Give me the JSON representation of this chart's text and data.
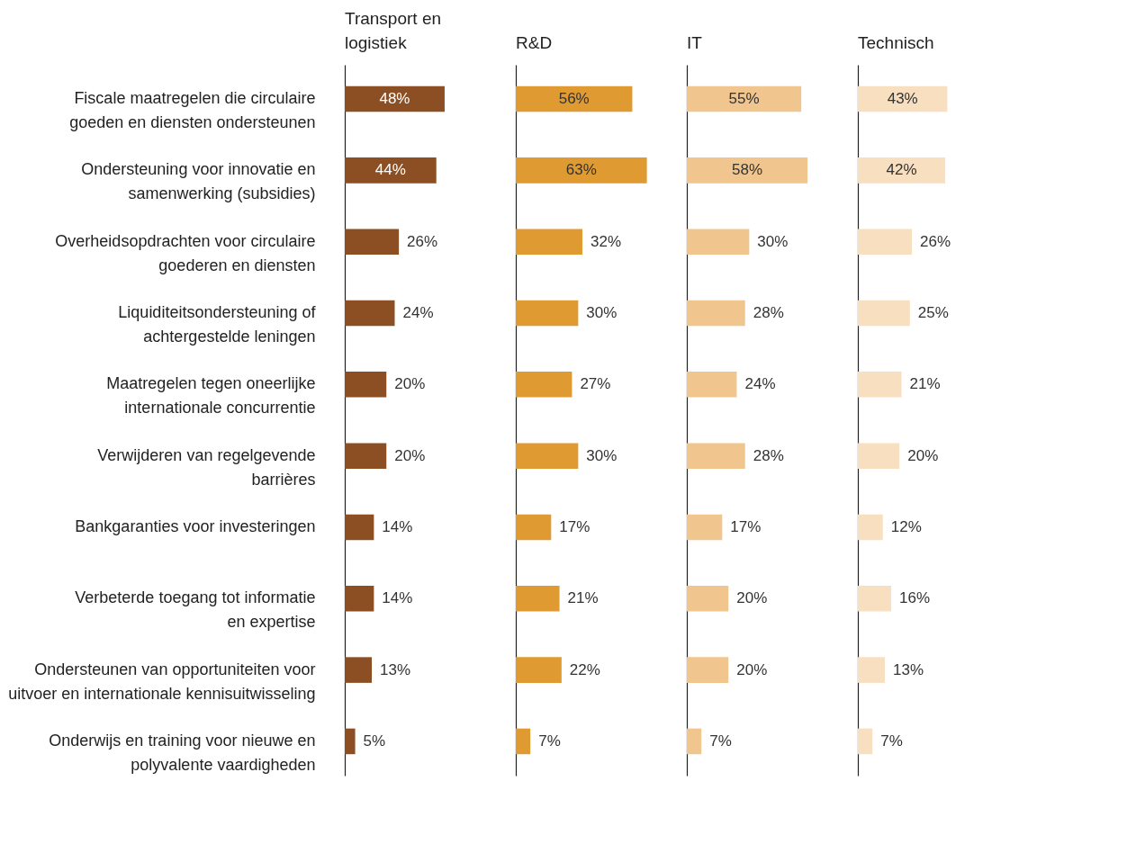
{
  "chart_data": [
    {
      "type": "bar",
      "orientation": "horizontal",
      "title": "Transport en\nlogistiek",
      "tick_labels": "y",
      "color": "#8b4f23",
      "categories": [
        "Fiscale maatregelen die circulaire\ngoeden en diensten ondersteunen",
        "Ondersteuning voor innovatie en\nsamenwerking (subsidies)",
        "Overheidsopdrachten voor circulaire\ngoederen en diensten",
        "Liquiditeitsondersteuning of\nachtergestelde leningen",
        "Maatregelen tegen oneerlijke\ninternationale concurrentie",
        "Verwijderen van regelgevende\nbarrières",
        "Bankgaranties voor investeringen",
        "Verbeterde toegang tot informatie\nen expertise",
        "Ondersteunen van opportuniteiten voor\nuitvoer en internationale kennisuitwisseling",
        "Onderwijs en training voor nieuwe en\npolyvalente vaardigheden"
      ],
      "values": [
        48,
        44,
        26,
        24,
        20,
        20,
        14,
        14,
        13,
        5
      ],
      "value_labels": [
        "48%",
        "44%",
        "26%",
        "24%",
        "20%",
        "20%",
        "14%",
        "14%",
        "13%",
        "5%"
      ]
    },
    {
      "type": "bar",
      "orientation": "horizontal",
      "title": "R&D",
      "tick_labels": false,
      "color": "#e09a32",
      "categories": [
        "Fiscale maatregelen die circulaire\ngoeden en diensten ondersteunen",
        "Ondersteuning voor innovatie en\nsamenwerking (subsidies)",
        "Overheidsopdrachten voor circulaire\ngoederen en diensten",
        "Liquiditeitsondersteuning of\nachtergestelde leningen",
        "Maatregelen tegen oneerlijke\ninternationale concurrentie",
        "Verwijderen van regelgevende\nbarrières",
        "Bankgaranties voor investeringen",
        "Verbeterde toegang tot informatie\nen expertise",
        "Ondersteunen van opportuniteiten voor\nuitvoer en internationale kennisuitwisseling",
        "Onderwijs en training voor nieuwe en\npolyvalente vaardigheden"
      ],
      "values": [
        56,
        63,
        32,
        30,
        27,
        30,
        17,
        21,
        22,
        7
      ],
      "value_labels": [
        "56%",
        "63%",
        "32%",
        "30%",
        "27%",
        "30%",
        "17%",
        "21%",
        "22%",
        "7%"
      ]
    },
    {
      "type": "bar",
      "orientation": "horizontal",
      "title": "IT",
      "tick_labels": false,
      "color": "#f0c68e",
      "categories": [
        "Fiscale maatregelen die circulaire\ngoeden en diensten ondersteunen",
        "Ondersteuning voor innovatie en\nsamenwerking (subsidies)",
        "Overheidsopdrachten voor circulaire\ngoederen en diensten",
        "Liquiditeitsondersteuning of\nachtergestelde leningen",
        "Maatregelen tegen oneerlijke\ninternationale concurrentie",
        "Verwijderen van regelgevende\nbarrières",
        "Bankgaranties voor investeringen",
        "Verbeterde toegang tot informatie\nen expertise",
        "Ondersteunen van opportuniteiten voor\nuitvoer en internationale kennisuitwisseling",
        "Onderwijs en training voor nieuwe en\npolyvalente vaardigheden"
      ],
      "values": [
        55,
        58,
        30,
        28,
        24,
        28,
        17,
        20,
        20,
        7
      ],
      "value_labels": [
        "55%",
        "58%",
        "30%",
        "28%",
        "24%",
        "28%",
        "17%",
        "20%",
        "20%",
        "7%"
      ]
    },
    {
      "type": "bar",
      "orientation": "horizontal",
      "title": "Technisch",
      "tick_labels": false,
      "color": "#f7dfc0",
      "categories": [
        "Fiscale maatregelen die circulaire\ngoeden en diensten ondersteunen",
        "Ondersteuning voor innovatie en\nsamenwerking (subsidies)",
        "Overheidsopdrachten voor circulaire\ngoederen en diensten",
        "Liquiditeitsondersteuning of\nachtergestelde leningen",
        "Maatregelen tegen oneerlijke\ninternationale concurrentie",
        "Verwijderen van regelgevende\nbarrières",
        "Bankgaranties voor investeringen",
        "Verbeterde toegang tot informatie\nen expertise",
        "Ondersteunen van opportuniteiten voor\nuitvoer en internationale kennisuitwisseling",
        "Onderwijs en training voor nieuwe en\npolyvalente vaardigheden"
      ],
      "values": [
        43,
        42,
        26,
        25,
        21,
        20,
        12,
        16,
        13,
        7
      ],
      "value_labels": [
        "43%",
        "42%",
        "26%",
        "25%",
        "21%",
        "20%",
        "12%",
        "16%",
        "13%",
        "7%"
      ]
    }
  ]
}
